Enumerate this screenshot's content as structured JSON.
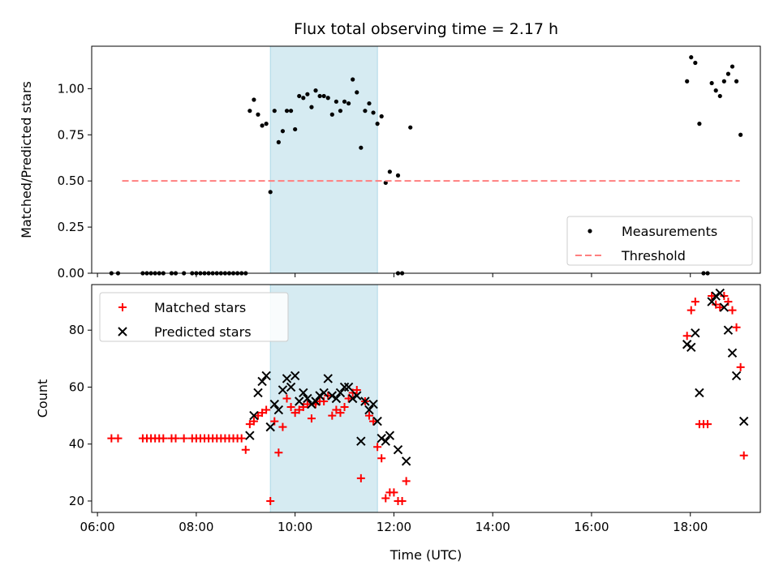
{
  "chart_data": {
    "title": "Flux total observing time = 2.17 h",
    "shaded_interval": [
      "09:30",
      "11:40"
    ],
    "xlabel": "Time (UTC)",
    "xticks": [
      "06:00",
      "08:00",
      "10:00",
      "12:00",
      "14:00",
      "16:00",
      "18:00"
    ],
    "xlim": [
      "05:53",
      "19:25"
    ],
    "colors": {
      "shade": "#add8e6",
      "measurements": "#000000",
      "threshold": "#ff7f7f",
      "matched": "#ff0000",
      "predicted": "#000000"
    },
    "panels": [
      {
        "type": "scatter",
        "ylabel": "Matched/Predicted stars",
        "ylim": [
          0,
          1.23
        ],
        "yticks": [
          "0.00",
          "0.25",
          "0.50",
          "0.75",
          "1.00"
        ],
        "legend": "lower-right",
        "series": [
          {
            "name": "Measurements",
            "points": [
              [
                "06:17",
                0
              ],
              [
                "06:25",
                0
              ],
              [
                "06:55",
                0
              ],
              [
                "07:00",
                0
              ],
              [
                "07:05",
                0
              ],
              [
                "07:10",
                0
              ],
              [
                "07:15",
                0
              ],
              [
                "07:20",
                0
              ],
              [
                "07:30",
                0
              ],
              [
                "07:35",
                0
              ],
              [
                "07:45",
                0
              ],
              [
                "07:55",
                0
              ],
              [
                "08:00",
                0
              ],
              [
                "08:05",
                0
              ],
              [
                "08:10",
                0
              ],
              [
                "08:15",
                0
              ],
              [
                "08:20",
                0
              ],
              [
                "08:25",
                0
              ],
              [
                "08:30",
                0
              ],
              [
                "08:35",
                0
              ],
              [
                "08:40",
                0
              ],
              [
                "08:45",
                0
              ],
              [
                "08:50",
                0
              ],
              [
                "08:55",
                0
              ],
              [
                "09:00",
                0
              ],
              [
                "09:05",
                0.88
              ],
              [
                "09:10",
                0.94
              ],
              [
                "09:15",
                0.86
              ],
              [
                "09:20",
                0.8
              ],
              [
                "09:25",
                0.81
              ],
              [
                "09:30",
                0.44
              ],
              [
                "09:35",
                0.88
              ],
              [
                "09:40",
                0.71
              ],
              [
                "09:45",
                0.77
              ],
              [
                "09:50",
                0.88
              ],
              [
                "09:55",
                0.88
              ],
              [
                "10:00",
                0.78
              ],
              [
                "10:05",
                0.96
              ],
              [
                "10:10",
                0.95
              ],
              [
                "10:15",
                0.97
              ],
              [
                "10:20",
                0.9
              ],
              [
                "10:25",
                0.99
              ],
              [
                "10:30",
                0.96
              ],
              [
                "10:35",
                0.96
              ],
              [
                "10:40",
                0.95
              ],
              [
                "10:45",
                0.86
              ],
              [
                "10:50",
                0.93
              ],
              [
                "10:55",
                0.88
              ],
              [
                "11:00",
                0.93
              ],
              [
                "11:05",
                0.92
              ],
              [
                "11:10",
                1.05
              ],
              [
                "11:15",
                0.98
              ],
              [
                "11:20",
                0.68
              ],
              [
                "11:25",
                0.88
              ],
              [
                "11:30",
                0.92
              ],
              [
                "11:35",
                0.87
              ],
              [
                "11:40",
                0.81
              ],
              [
                "11:45",
                0.85
              ],
              [
                "11:50",
                0.49
              ],
              [
                "11:55",
                0.55
              ],
              [
                "12:05",
                0.53
              ],
              [
                "12:20",
                0.79
              ],
              [
                "12:05",
                0
              ],
              [
                "12:10",
                0
              ],
              [
                "17:56",
                1.04
              ],
              [
                "18:01",
                1.17
              ],
              [
                "18:06",
                1.14
              ],
              [
                "18:11",
                0.81
              ],
              [
                "18:16",
                0
              ],
              [
                "18:21",
                0
              ],
              [
                "18:26",
                1.03
              ],
              [
                "18:31",
                0.99
              ],
              [
                "18:36",
                0.96
              ],
              [
                "18:41",
                1.04
              ],
              [
                "18:46",
                1.08
              ],
              [
                "18:51",
                1.12
              ],
              [
                "18:56",
                1.04
              ],
              [
                "19:01",
                0.75
              ]
            ]
          },
          {
            "name": "Threshold",
            "kind": "line",
            "points": [
              [
                "06:30",
                0.5
              ],
              [
                "19:00",
                0.5
              ]
            ]
          }
        ]
      },
      {
        "type": "scatter",
        "ylabel": "Count",
        "ylim": [
          16,
          96
        ],
        "yticks": [
          "20",
          "40",
          "60",
          "80"
        ],
        "legend": "upper-left",
        "series": [
          {
            "name": "Matched stars",
            "points": [
              [
                "06:17",
                42
              ],
              [
                "06:25",
                42
              ],
              [
                "06:55",
                42
              ],
              [
                "07:00",
                42
              ],
              [
                "07:05",
                42
              ],
              [
                "07:10",
                42
              ],
              [
                "07:15",
                42
              ],
              [
                "07:20",
                42
              ],
              [
                "07:30",
                42
              ],
              [
                "07:35",
                42
              ],
              [
                "07:45",
                42
              ],
              [
                "07:55",
                42
              ],
              [
                "08:00",
                42
              ],
              [
                "08:05",
                42
              ],
              [
                "08:10",
                42
              ],
              [
                "08:15",
                42
              ],
              [
                "08:20",
                42
              ],
              [
                "08:25",
                42
              ],
              [
                "08:30",
                42
              ],
              [
                "08:35",
                42
              ],
              [
                "08:40",
                42
              ],
              [
                "08:45",
                42
              ],
              [
                "08:50",
                42
              ],
              [
                "08:55",
                42
              ],
              [
                "09:00",
                38
              ],
              [
                "09:05",
                47
              ],
              [
                "09:10",
                48
              ],
              [
                "09:15",
                50
              ],
              [
                "09:20",
                51
              ],
              [
                "09:25",
                52
              ],
              [
                "09:30",
                20
              ],
              [
                "09:35",
                48
              ],
              [
                "09:40",
                37
              ],
              [
                "09:45",
                46
              ],
              [
                "09:50",
                56
              ],
              [
                "09:55",
                53
              ],
              [
                "10:00",
                51
              ],
              [
                "10:05",
                52
              ],
              [
                "10:10",
                53
              ],
              [
                "10:15",
                54
              ],
              [
                "10:20",
                49
              ],
              [
                "10:25",
                54
              ],
              [
                "10:30",
                55
              ],
              [
                "10:35",
                55
              ],
              [
                "10:40",
                57
              ],
              [
                "10:45",
                50
              ],
              [
                "10:50",
                52
              ],
              [
                "10:55",
                51
              ],
              [
                "11:00",
                53
              ],
              [
                "11:05",
                56
              ],
              [
                "11:10",
                58
              ],
              [
                "11:15",
                59
              ],
              [
                "11:20",
                28
              ],
              [
                "11:25",
                55
              ],
              [
                "11:30",
                50
              ],
              [
                "11:35",
                48
              ],
              [
                "11:40",
                39
              ],
              [
                "11:45",
                35
              ],
              [
                "11:50",
                21
              ],
              [
                "11:55",
                23
              ],
              [
                "12:00",
                23
              ],
              [
                "12:05",
                20
              ],
              [
                "12:10",
                20
              ],
              [
                "12:15",
                27
              ],
              [
                "17:56",
                78
              ],
              [
                "18:01",
                87
              ],
              [
                "18:06",
                90
              ],
              [
                "18:11",
                47
              ],
              [
                "18:16",
                47
              ],
              [
                "18:21",
                47
              ],
              [
                "18:26",
                92
              ],
              [
                "18:31",
                89
              ],
              [
                "18:36",
                88
              ],
              [
                "18:41",
                92
              ],
              [
                "18:46",
                90
              ],
              [
                "18:51",
                87
              ],
              [
                "18:56",
                81
              ],
              [
                "19:01",
                67
              ],
              [
                "19:05",
                36
              ]
            ]
          },
          {
            "name": "Predicted stars",
            "points": [
              [
                "09:05",
                43
              ],
              [
                "09:10",
                50
              ],
              [
                "09:15",
                58
              ],
              [
                "09:20",
                62
              ],
              [
                "09:25",
                64
              ],
              [
                "09:30",
                46
              ],
              [
                "09:35",
                54
              ],
              [
                "09:40",
                52
              ],
              [
                "09:45",
                59
              ],
              [
                "09:50",
                63
              ],
              [
                "09:55",
                60
              ],
              [
                "10:00",
                64
              ],
              [
                "10:05",
                55
              ],
              [
                "10:10",
                58
              ],
              [
                "10:15",
                56
              ],
              [
                "10:20",
                54
              ],
              [
                "10:25",
                55
              ],
              [
                "10:30",
                57
              ],
              [
                "10:35",
                58
              ],
              [
                "10:40",
                63
              ],
              [
                "10:45",
                57
              ],
              [
                "10:50",
                56
              ],
              [
                "10:55",
                58
              ],
              [
                "11:00",
                60
              ],
              [
                "11:05",
                60
              ],
              [
                "11:10",
                56
              ],
              [
                "11:15",
                57
              ],
              [
                "11:20",
                41
              ],
              [
                "11:25",
                55
              ],
              [
                "11:30",
                52
              ],
              [
                "11:35",
                54
              ],
              [
                "11:40",
                48
              ],
              [
                "11:45",
                42
              ],
              [
                "11:50",
                41
              ],
              [
                "11:55",
                43
              ],
              [
                "12:05",
                38
              ],
              [
                "12:15",
                34
              ],
              [
                "17:56",
                75
              ],
              [
                "18:01",
                74
              ],
              [
                "18:06",
                79
              ],
              [
                "18:11",
                58
              ],
              [
                "18:26",
                90
              ],
              [
                "18:31",
                92
              ],
              [
                "18:36",
                93
              ],
              [
                "18:41",
                88
              ],
              [
                "18:46",
                80
              ],
              [
                "18:51",
                72
              ],
              [
                "18:56",
                64
              ],
              [
                "19:05",
                48
              ]
            ]
          }
        ]
      }
    ]
  }
}
